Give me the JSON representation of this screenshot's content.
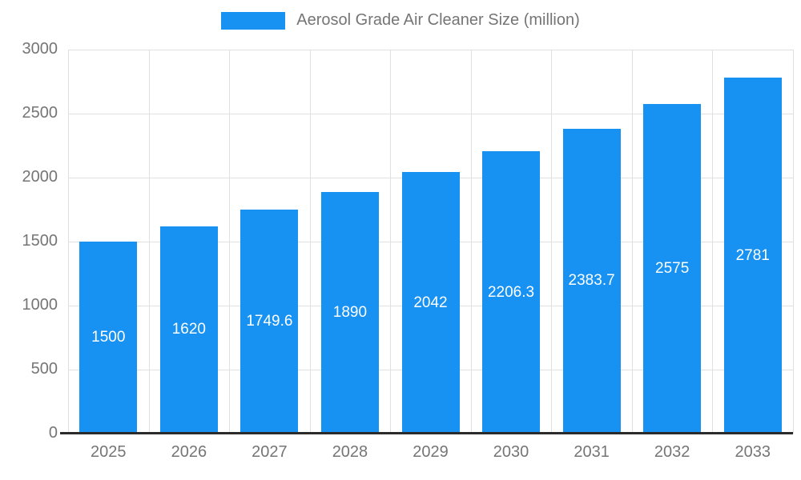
{
  "chart_data": {
    "type": "bar",
    "title": "Aerosol Grade Air Cleaner Size (million)",
    "categories": [
      "2025",
      "2026",
      "2027",
      "2028",
      "2029",
      "2030",
      "2031",
      "2032",
      "2033"
    ],
    "values": [
      1500,
      1620,
      1749.6,
      1890,
      2042,
      2206.3,
      2383.7,
      2575,
      2781
    ],
    "value_labels": [
      "1500",
      "1620",
      "1749.6",
      "1890",
      "2042",
      "2206.3",
      "2383.7",
      "2575",
      "2781"
    ],
    "xlabel": "",
    "ylabel": "",
    "ylim": [
      0,
      3000
    ],
    "yticks": [
      0,
      500,
      1000,
      1500,
      2000,
      2500,
      3000
    ],
    "grid": true,
    "legend_position": "top",
    "bar_color": "#1791f2",
    "value_label_color": "#ffffff",
    "axis_text_color": "#757575",
    "gridline_color": "#e0e0e0",
    "baseline_color": "#2b2b2b"
  }
}
